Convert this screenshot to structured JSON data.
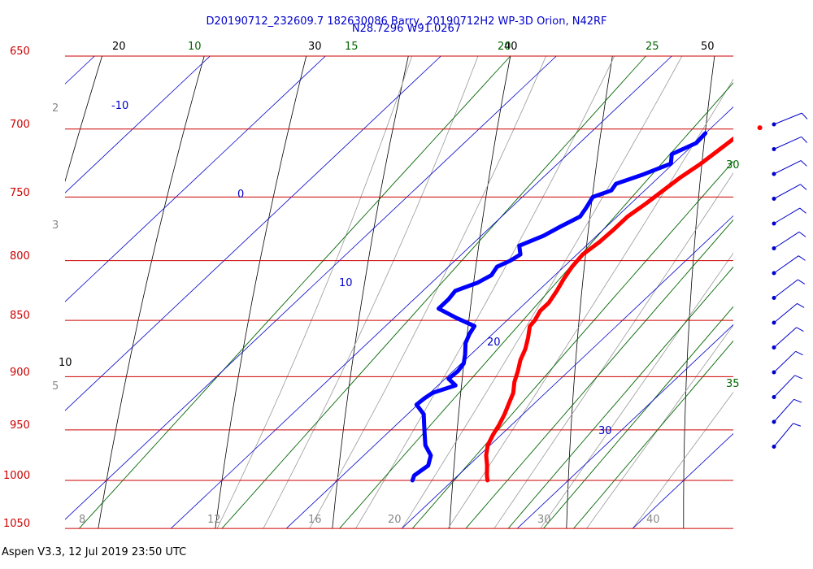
{
  "header": {
    "line1": "D20190712_232609.7 182630086 Barry, 20190712H2 WP-3D Orion, N42RF",
    "line2": "N28.7296 W91.0267"
  },
  "footer": {
    "text": "Aspen V3.3, 12 Jul 2019  23:50 UTC"
  },
  "colors": {
    "isobar": "#cc0000",
    "isotherm": "#0000cc",
    "dry_adiabat": "#000000",
    "moist_adiabat": "#999999",
    "mixing_ratio": "#006600",
    "temperature": "#ff0000",
    "dewpoint": "#0000ff",
    "wind_barb": "#0000cc"
  },
  "chart_data": {
    "type": "line",
    "chart_kind": "skew-T log-P",
    "grid": true,
    "y_axis_pressure_labels": [
      "650",
      "700",
      "750",
      "800",
      "850",
      "900",
      "950",
      "1000",
      "1050"
    ],
    "pressure_levels": [
      650,
      700,
      750,
      800,
      850,
      900,
      950,
      1000,
      1050
    ],
    "isotherm_labels": [
      {
        "text": "-10",
        "value": -10
      },
      {
        "text": "0",
        "value": 0
      },
      {
        "text": "10",
        "value": 10
      },
      {
        "text": "20",
        "value": 20
      },
      {
        "text": "30",
        "value": 30
      }
    ],
    "potential_temperature_labels": [
      "20",
      "30",
      "40",
      "50",
      "10"
    ],
    "mixing_ratio_labels": [
      "10",
      "15",
      "20",
      "25",
      "30",
      "35"
    ],
    "bottom_axis_labels": [
      "8",
      "12",
      "16",
      "20",
      "30",
      "40"
    ],
    "left_side_labels": [
      "2",
      "3",
      "5"
    ],
    "series": [
      {
        "kind": "temperature",
        "points": [
          {
            "p": 700,
            "t": 13.4
          },
          {
            "p": 705,
            "t": 13.0
          },
          {
            "p": 715,
            "t": 12.7
          },
          {
            "p": 725,
            "t": 12.4
          },
          {
            "p": 735,
            "t": 11.9
          },
          {
            "p": 745,
            "t": 11.6
          },
          {
            "p": 755,
            "t": 11.3
          },
          {
            "p": 765,
            "t": 10.9
          },
          {
            "p": 775,
            "t": 10.9
          },
          {
            "p": 785,
            "t": 10.8
          },
          {
            "p": 795,
            "t": 10.5
          },
          {
            "p": 805,
            "t": 10.7
          },
          {
            "p": 815,
            "t": 11.1
          },
          {
            "p": 825,
            "t": 11.6
          },
          {
            "p": 835,
            "t": 12.0
          },
          {
            "p": 842,
            "t": 12.0
          },
          {
            "p": 850,
            "t": 12.4
          },
          {
            "p": 855,
            "t": 12.5
          },
          {
            "p": 865,
            "t": 13.4
          },
          {
            "p": 875,
            "t": 14.2
          },
          {
            "p": 885,
            "t": 14.8
          },
          {
            "p": 895,
            "t": 15.6
          },
          {
            "p": 905,
            "t": 16.3
          },
          {
            "p": 915,
            "t": 17.2
          },
          {
            "p": 925,
            "t": 17.8
          },
          {
            "p": 935,
            "t": 18.4
          },
          {
            "p": 945,
            "t": 18.9
          },
          {
            "p": 955,
            "t": 19.3
          },
          {
            "p": 965,
            "t": 19.8
          },
          {
            "p": 975,
            "t": 20.6
          },
          {
            "p": 985,
            "t": 21.6
          },
          {
            "p": 995,
            "t": 22.5
          },
          {
            "p": 1000,
            "t": 23.0
          }
        ],
        "extra_point": {
          "p": 699,
          "t": 14.2
        }
      },
      {
        "kind": "dewpoint",
        "points": [
          {
            "p": 703,
            "t": 10.0
          },
          {
            "p": 710,
            "t": 10.1
          },
          {
            "p": 718,
            "t": 9.0
          },
          {
            "p": 725,
            "t": 9.8
          },
          {
            "p": 733,
            "t": 8.4
          },
          {
            "p": 740,
            "t": 6.9
          },
          {
            "p": 745,
            "t": 7.1
          },
          {
            "p": 750,
            "t": 6.1
          },
          {
            "p": 758,
            "t": 6.5
          },
          {
            "p": 765,
            "t": 6.8
          },
          {
            "p": 773,
            "t": 6.0
          },
          {
            "p": 780,
            "t": 5.4
          },
          {
            "p": 788,
            "t": 4.2
          },
          {
            "p": 795,
            "t": 5.1
          },
          {
            "p": 800,
            "t": 4.8
          },
          {
            "p": 805,
            "t": 4.2
          },
          {
            "p": 812,
            "t": 4.5
          },
          {
            "p": 818,
            "t": 4.0
          },
          {
            "p": 825,
            "t": 2.8
          },
          {
            "p": 832,
            "t": 3.0
          },
          {
            "p": 840,
            "t": 3.0
          },
          {
            "p": 848,
            "t": 5.4
          },
          {
            "p": 855,
            "t": 7.7
          },
          {
            "p": 862,
            "t": 8.0
          },
          {
            "p": 870,
            "t": 8.5
          },
          {
            "p": 880,
            "t": 9.5
          },
          {
            "p": 888,
            "t": 10.2
          },
          {
            "p": 895,
            "t": 10.4
          },
          {
            "p": 902,
            "t": 10.3
          },
          {
            "p": 908,
            "t": 11.5
          },
          {
            "p": 915,
            "t": 10.2
          },
          {
            "p": 920,
            "t": 10.0
          },
          {
            "p": 926,
            "t": 9.9
          },
          {
            "p": 935,
            "t": 11.4
          },
          {
            "p": 945,
            "t": 12.4
          },
          {
            "p": 955,
            "t": 13.4
          },
          {
            "p": 965,
            "t": 14.4
          },
          {
            "p": 975,
            "t": 15.8
          },
          {
            "p": 985,
            "t": 16.5
          },
          {
            "p": 995,
            "t": 16.2
          },
          {
            "p": 1000,
            "t": 16.5
          }
        ]
      }
    ],
    "wind_barbs": {
      "count": 14,
      "pressures": [
        700,
        720,
        740,
        760,
        780,
        800,
        820,
        840,
        860,
        880,
        900,
        920,
        940,
        960
      ]
    }
  }
}
